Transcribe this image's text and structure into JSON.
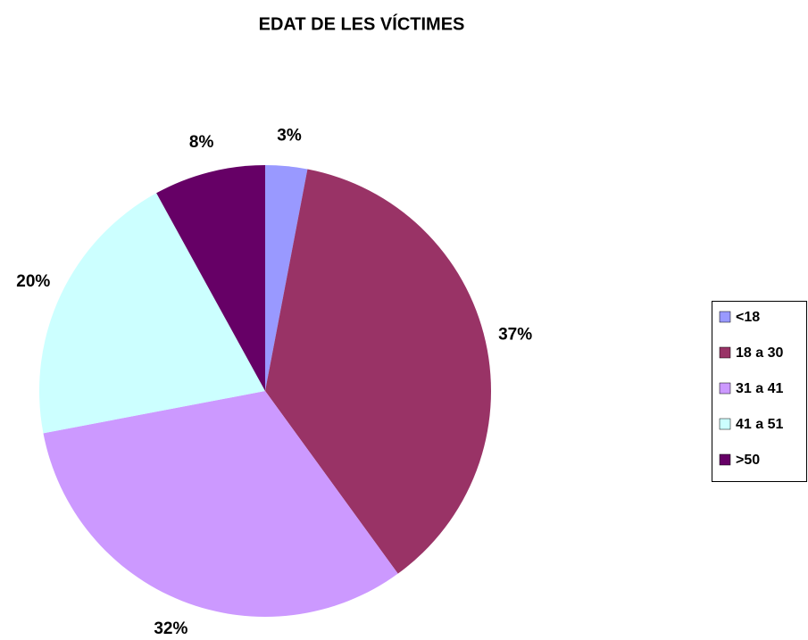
{
  "chart_data": {
    "type": "pie",
    "title": "EDAT DE LES VÍCTIMES",
    "categories": [
      "<18",
      "18 a 30",
      "31 a 41",
      "41 a 51",
      ">50"
    ],
    "values": [
      3,
      37,
      32,
      20,
      8
    ],
    "value_labels": [
      "3%",
      "37%",
      "32%",
      "20%",
      "8%"
    ],
    "colors": [
      "#9999ff",
      "#993366",
      "#cc99ff",
      "#ccffff",
      "#660066"
    ],
    "legend": "right"
  }
}
